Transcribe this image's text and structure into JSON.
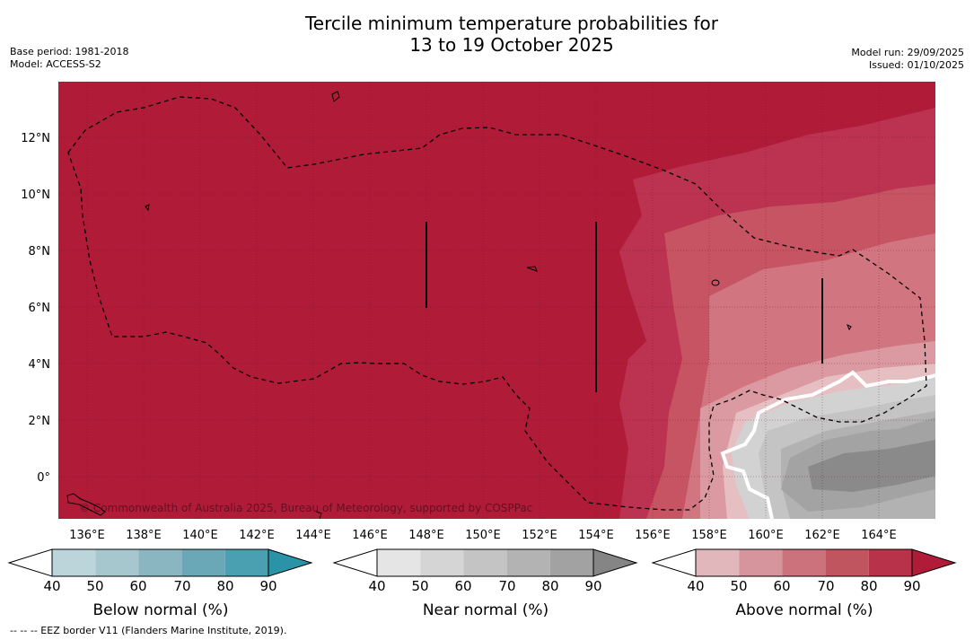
{
  "title": {
    "line1": "Tercile minimum temperature probabilities for",
    "line2": "13 to 19 October 2025"
  },
  "meta_left": {
    "base_period": "Base period: 1981-2018",
    "model": "Model: ACCESS-S2"
  },
  "meta_right": {
    "model_run": "Model run: 29/09/2025",
    "issued": "Issued: 01/10/2025"
  },
  "map": {
    "lat_labels": [
      "12°N",
      "10°N",
      "8°N",
      "6°N",
      "4°N",
      "2°N",
      "0°"
    ],
    "lon_labels": [
      "136°E",
      "138°E",
      "140°E",
      "142°E",
      "144°E",
      "146°E",
      "148°E",
      "150°E",
      "152°E",
      "154°E",
      "156°E",
      "158°E",
      "160°E",
      "162°E",
      "164°E"
    ],
    "watermark": "© Commonwealth of Australia 2025, Bureau of Meteorology, supported by COSPPac",
    "colors": {
      "above_90": "#b01c38",
      "above_80": "#bb3350",
      "above_70": "#c65462",
      "above_60": "#d17680",
      "above_50": "#db9aa1",
      "above_40": "#e6bfc3",
      "near_40": "#e4e4e4",
      "near_50": "#d2d2d2",
      "near_60": "#c4c4c4",
      "near_70": "#b2b2b2",
      "near_80": "#a3a3a3",
      "near_90": "#8a8a8a"
    }
  },
  "colorbars": [
    {
      "title": "Below normal (%)",
      "ticks": [
        "40",
        "50",
        "60",
        "70",
        "80",
        "90"
      ],
      "colors": [
        "#ffffff",
        "#bcd5db",
        "#a7c7cf",
        "#8ab6c2",
        "#6aa8b8",
        "#4a9fb0",
        "#2b93a8"
      ]
    },
    {
      "title": "Near normal (%)",
      "ticks": [
        "40",
        "50",
        "60",
        "70",
        "80",
        "90"
      ],
      "colors": [
        "#ffffff",
        "#e5e5e5",
        "#d5d5d5",
        "#c4c4c4",
        "#b3b3b3",
        "#a2a2a2",
        "#858585"
      ]
    },
    {
      "title": "Above normal (%)",
      "ticks": [
        "40",
        "50",
        "60",
        "70",
        "80",
        "90"
      ],
      "colors": [
        "#ffffff",
        "#e2b7bc",
        "#d6959c",
        "#cb727c",
        "#c1555f",
        "#b83249",
        "#b01c38"
      ]
    }
  ],
  "footnote": "--  --  -- EEZ border V11 (Flanders Marine Institute, 2019)."
}
